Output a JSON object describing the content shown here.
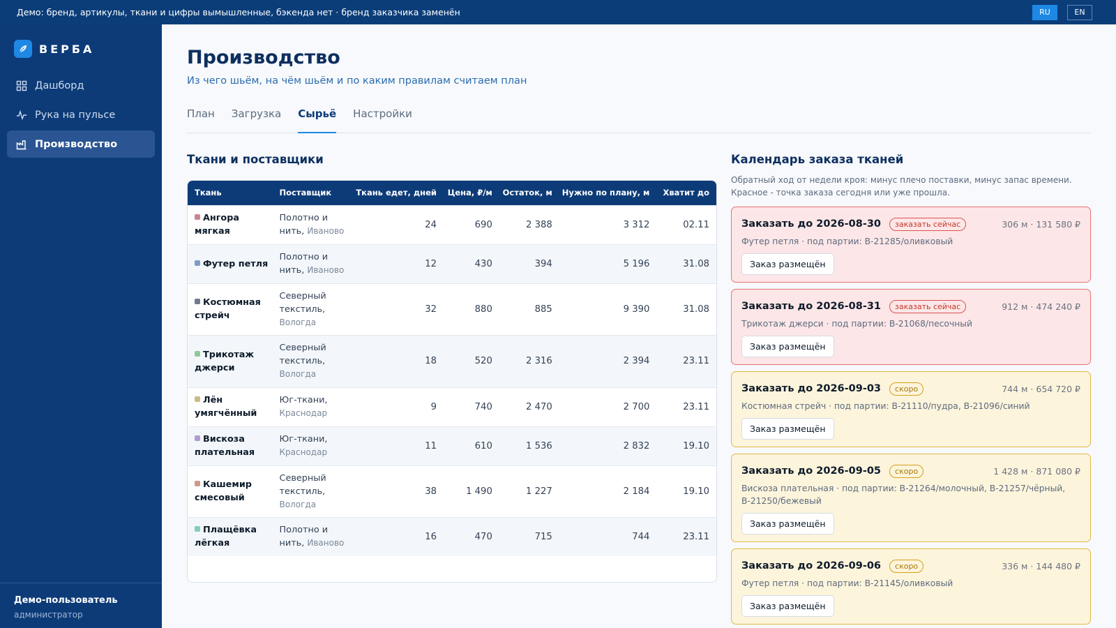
{
  "topbar": {
    "message": "Демо: бренд, артикулы, ткани и цифры вымышленные, бэкенда нет · бренд заказчика заменён",
    "lang_ru": "RU",
    "lang_en": "EN"
  },
  "sidebar": {
    "brand": "ВЕРБА",
    "items": [
      {
        "label": "Дашборд",
        "icon": "dashboard-icon"
      },
      {
        "label": "Рука на пульсе",
        "icon": "pulse-icon"
      },
      {
        "label": "Производство",
        "icon": "factory-icon",
        "active": true
      }
    ],
    "user_name": "Демо-пользователь",
    "user_role": "администратор"
  },
  "page": {
    "title": "Производство",
    "subtitle": "Из чего шьём, на чём шьём и по каким правилам считаем план",
    "tabs": [
      "План",
      "Загрузка",
      "Сырьё",
      "Настройки"
    ],
    "active_tab": "Сырьё"
  },
  "fabrics": {
    "title": "Ткани и поставщики",
    "columns": [
      "Ткань",
      "Поставщик",
      "Ткань едет, дней",
      "Цена, ₽/м",
      "Остаток, м",
      "Нужно по плану, м",
      "Хватит до"
    ],
    "rows": [
      {
        "name": "Ангора мягкая",
        "color": "#c9868e",
        "supplier": "Полотно и нить,",
        "city": "Иваново",
        "days": "24",
        "price": "690",
        "stock": "2 388",
        "need": "3 312",
        "until": "02.11"
      },
      {
        "name": "Футер петля",
        "color": "#7f9cc9",
        "supplier": "Полотно и нить,",
        "city": "Иваново",
        "days": "12",
        "price": "430",
        "stock": "394",
        "need": "5 196",
        "until": "31.08"
      },
      {
        "name": "Костюмная стрейч",
        "color": "#6f7a8c",
        "supplier": "Северный текстиль,",
        "city": "Вологда",
        "days": "32",
        "price": "880",
        "stock": "885",
        "need": "9 390",
        "until": "31.08"
      },
      {
        "name": "Трикотаж джерси",
        "color": "#8fc89a",
        "supplier": "Северный текстиль,",
        "city": "Вологда",
        "days": "18",
        "price": "520",
        "stock": "2 316",
        "need": "2 394",
        "until": "23.11"
      },
      {
        "name": "Лён умягчённый",
        "color": "#cbbb86",
        "supplier": "Юг-ткани,",
        "city": "Краснодар",
        "days": "9",
        "price": "740",
        "stock": "2 470",
        "need": "2 700",
        "until": "23.11"
      },
      {
        "name": "Вискоза плательная",
        "color": "#b09bd0",
        "supplier": "Юг-ткани,",
        "city": "Краснодар",
        "days": "11",
        "price": "610",
        "stock": "1 536",
        "need": "2 832",
        "until": "19.10"
      },
      {
        "name": "Кашемир смесовый",
        "color": "#cc9a86",
        "supplier": "Северный текстиль,",
        "city": "Вологда",
        "days": "38",
        "price": "1 490",
        "stock": "1 227",
        "need": "2 184",
        "until": "19.10"
      },
      {
        "name": "Плащёвка лёгкая",
        "color": "#86cbbf",
        "supplier": "Полотно и нить,",
        "city": "Иваново",
        "days": "16",
        "price": "470",
        "stock": "715",
        "need": "744",
        "until": "23.11"
      }
    ]
  },
  "calendar": {
    "title": "Календарь заказа тканей",
    "desc_line1": "Обратный ход от недели кроя: минус плечо поставки, минус запас времени.",
    "desc_line2": "Красное - точка заказа сегодня или уже прошла.",
    "button_label": "Заказ размещён",
    "cards": [
      {
        "status": "red",
        "title": "Заказать до 2026-08-30",
        "badge": "заказать сейчас",
        "meta": "306 м · 131 580 ₽",
        "detail": "Футер петля · под партии: В-21285/оливковый"
      },
      {
        "status": "red",
        "title": "Заказать до 2026-08-31",
        "badge": "заказать сейчас",
        "meta": "912 м · 474 240 ₽",
        "detail": "Трикотаж джерси · под партии: В-21068/песочный"
      },
      {
        "status": "amber",
        "title": "Заказать до 2026-09-03",
        "badge": "скоро",
        "meta": "744 м · 654 720 ₽",
        "detail": "Костюмная стрейч · под партии: В-21110/пудра, В-21096/синий"
      },
      {
        "status": "amber",
        "title": "Заказать до 2026-09-05",
        "badge": "скоро",
        "meta": "1 428 м · 871 080 ₽",
        "detail": "Вискоза плательная · под партии: В-21264/молочный, В-21257/чёрный, В-21250/бежевый"
      },
      {
        "status": "amber",
        "title": "Заказать до 2026-09-06",
        "badge": "скоро",
        "meta": "336 м · 144 480 ₽",
        "detail": "Футер петля · под партии: В-21145/оливковый"
      }
    ]
  }
}
